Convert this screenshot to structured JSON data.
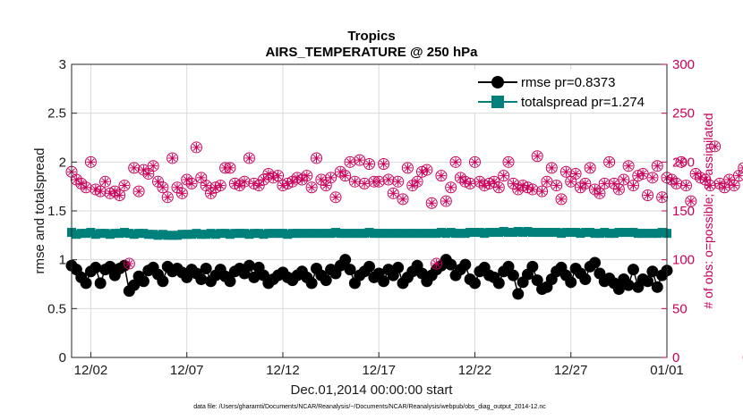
{
  "chart_data": {
    "type": "line",
    "title": "Tropics",
    "subtitle": "AIRS_TEMPERATURE @ 250 hPa",
    "xlabel": "Dec.01,2014 00:00:00 start",
    "ylabel": "rmse and totalspread",
    "ylabel_right": "# of obs: o=possible; ×=assimilated",
    "footnote": "data file: /Users/gharamti/Documents/NCAR/Reanalysis/~/Documents/NCAR/Reanalysis/webpub/obs_diag_output_2014-12.nc",
    "xlim": [
      1,
      32
    ],
    "ylim": [
      0,
      3
    ],
    "ylim_right": [
      0,
      300
    ],
    "x_ticks": [
      {
        "value": 2,
        "label": "12/02"
      },
      {
        "value": 7,
        "label": "12/07"
      },
      {
        "value": 12,
        "label": "12/12"
      },
      {
        "value": 17,
        "label": "12/17"
      },
      {
        "value": 22,
        "label": "12/22"
      },
      {
        "value": 27,
        "label": "12/27"
      },
      {
        "value": 32,
        "label": "01/01"
      }
    ],
    "y_ticks": [
      {
        "value": 0,
        "label": "0"
      },
      {
        "value": 0.5,
        "label": "0.5"
      },
      {
        "value": 1,
        "label": "1"
      },
      {
        "value": 1.5,
        "label": "1.5"
      },
      {
        "value": 2,
        "label": "2"
      },
      {
        "value": 2.5,
        "label": "2.5"
      },
      {
        "value": 3,
        "label": "3"
      }
    ],
    "y_ticks_right": [
      {
        "value": 0,
        "label": "0"
      },
      {
        "value": 50,
        "label": "50"
      },
      {
        "value": 100,
        "label": "100"
      },
      {
        "value": 150,
        "label": "150"
      },
      {
        "value": 200,
        "label": "200"
      },
      {
        "value": 250,
        "label": "250"
      },
      {
        "value": 300,
        "label": "300"
      }
    ],
    "x_start": 1.0,
    "x_step": 0.25,
    "series": [
      {
        "name": "rmse pr=0.8373",
        "color": "#000000",
        "axis": "left",
        "marker": "circle",
        "values": [
          0.94,
          0.9,
          0.82,
          0.76,
          0.88,
          0.92,
          0.76,
          0.9,
          0.93,
          0.84,
          0.91,
          0.94,
          0.68,
          0.74,
          0.83,
          0.78,
          0.89,
          0.92,
          0.85,
          0.78,
          0.93,
          0.88,
          0.91,
          0.87,
          0.82,
          0.9,
          0.86,
          0.8,
          0.91,
          0.78,
          0.84,
          0.9,
          0.83,
          0.78,
          0.88,
          0.91,
          0.86,
          0.94,
          0.82,
          0.92,
          0.84,
          0.76,
          0.8,
          0.84,
          0.87,
          0.82,
          0.79,
          0.84,
          0.88,
          0.82,
          0.76,
          0.91,
          0.84,
          0.79,
          0.9,
          0.86,
          0.94,
          1.0,
          0.9,
          0.76,
          0.84,
          0.88,
          0.93,
          0.82,
          0.86,
          0.78,
          0.9,
          0.84,
          0.92,
          0.76,
          0.82,
          0.88,
          0.94,
          0.86,
          0.78,
          0.84,
          0.9,
          0.94,
          1.0,
          0.95,
          0.84,
          0.9,
          0.95,
          0.8,
          0.76,
          0.88,
          0.92,
          0.84,
          0.82,
          0.76,
          0.88,
          0.93,
          0.84,
          0.65,
          0.77,
          0.85,
          0.93,
          0.79,
          0.7,
          0.72,
          0.8,
          0.88,
          0.92,
          0.84,
          0.77,
          0.91,
          0.86,
          0.8,
          0.93,
          0.97,
          0.86,
          0.78,
          0.81,
          0.76,
          0.7,
          0.8,
          0.74,
          0.9,
          0.72,
          0.8,
          0.78,
          0.88,
          0.72,
          0.84,
          0.89
        ]
      },
      {
        "name": "totalspread pr=1.274",
        "color": "#00807a",
        "axis": "left",
        "marker": "square",
        "values": [
          1.28,
          1.26,
          1.27,
          1.27,
          1.28,
          1.26,
          1.27,
          1.27,
          1.26,
          1.27,
          1.27,
          1.28,
          1.27,
          1.26,
          1.27,
          1.27,
          1.26,
          1.26,
          1.25,
          1.26,
          1.25,
          1.25,
          1.25,
          1.26,
          1.26,
          1.26,
          1.27,
          1.26,
          1.26,
          1.27,
          1.26,
          1.27,
          1.27,
          1.26,
          1.27,
          1.27,
          1.27,
          1.26,
          1.27,
          1.27,
          1.26,
          1.27,
          1.27,
          1.27,
          1.27,
          1.26,
          1.27,
          1.27,
          1.27,
          1.27,
          1.27,
          1.27,
          1.27,
          1.27,
          1.27,
          1.28,
          1.27,
          1.27,
          1.27,
          1.27,
          1.27,
          1.27,
          1.28,
          1.27,
          1.27,
          1.27,
          1.27,
          1.27,
          1.27,
          1.27,
          1.27,
          1.27,
          1.27,
          1.27,
          1.27,
          1.27,
          1.27,
          1.28,
          1.27,
          1.28,
          1.27,
          1.27,
          1.27,
          1.28,
          1.28,
          1.28,
          1.27,
          1.28,
          1.28,
          1.28,
          1.29,
          1.28,
          1.28,
          1.29,
          1.28,
          1.29,
          1.28,
          1.28,
          1.28,
          1.28,
          1.28,
          1.28,
          1.27,
          1.28,
          1.28,
          1.28,
          1.27,
          1.28,
          1.28,
          1.27,
          1.27,
          1.28,
          1.27,
          1.27,
          1.28,
          1.28,
          1.28,
          1.28,
          1.27,
          1.27,
          1.27,
          1.27,
          1.27,
          1.28,
          1.27
        ]
      },
      {
        "name": "obs possible",
        "color": "#c8005a",
        "axis": "right",
        "marker": "asterisk-circle",
        "values": [
          190,
          182,
          178,
          174,
          200,
          172,
          170,
          180,
          168,
          170,
          166,
          176,
          96,
          194,
          170,
          192,
          188,
          196,
          180,
          174,
          164,
          204,
          174,
          168,
          182,
          178,
          215,
          184,
          176,
          168,
          174,
          176,
          194,
          194,
          178,
          176,
          180,
          204,
          178,
          176,
          182,
          188,
          184,
          186,
          176,
          178,
          180,
          184,
          182,
          186,
          174,
          204,
          182,
          176,
          184,
          164,
          190,
          186,
          200,
          180,
          202,
          178,
          198,
          180,
          180,
          198,
          182,
          168,
          180,
          162,
          194,
          176,
          180,
          190,
          192,
          158,
          96,
          186,
          160,
          174,
          200,
          184,
          180,
          178,
          200,
          180,
          176,
          178,
          180,
          174,
          186,
          200,
          178,
          172,
          176,
          174,
          172,
          206,
          170,
          180,
          194,
          176,
          162,
          190,
          180,
          188,
          174,
          178,
          194,
          172,
          168,
          178,
          200,
          178,
          172,
          182,
          196,
          176,
          186,
          188,
          166,
          184,
          196,
          164,
          184,
          182,
          178,
          200,
          176,
          160,
          188,
          184,
          182,
          176,
          216,
          178,
          174,
          182,
          176,
          186,
          194,
          0,
          146
        ]
      }
    ],
    "legend": [
      {
        "label": "rmse pr=0.8373"
      },
      {
        "label": "totalspread pr=1.274"
      }
    ]
  }
}
